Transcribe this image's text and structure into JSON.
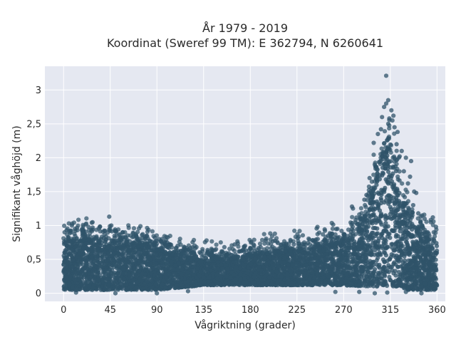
{
  "chart_data": {
    "type": "scatter",
    "title": "År 1979 - 2019",
    "subtitle": "Koordinat (Sweref 99 TM): E 362794, N 6260641",
    "xlabel": "Vågriktning (grader)",
    "ylabel": "Signifikant våghöjd (m)",
    "xlim": [
      -18,
      368
    ],
    "ylim": [
      -0.12,
      3.35
    ],
    "x_ticks": [
      0,
      45,
      90,
      135,
      180,
      225,
      270,
      315,
      360
    ],
    "x_tick_labels": [
      "0",
      "45",
      "90",
      "135",
      "180",
      "225",
      "270",
      "315",
      "360"
    ],
    "y_ticks": [
      0,
      0.5,
      1,
      1.5,
      2,
      2.5,
      3
    ],
    "y_tick_labels": [
      "0",
      "0,5",
      "1",
      "1,5",
      "2",
      "2,5",
      "3"
    ],
    "grid": true,
    "legend": "none",
    "point_color": "#2f5369",
    "plot_bg": "#e5e8f1",
    "envelope": {
      "x": [
        0,
        20,
        45,
        70,
        90,
        110,
        135,
        160,
        180,
        200,
        225,
        250,
        270,
        285,
        295,
        303,
        310,
        315,
        320,
        325,
        330,
        340,
        350,
        360
      ],
      "y_max": [
        0.75,
        0.78,
        0.75,
        0.7,
        0.65,
        0.55,
        0.5,
        0.52,
        0.55,
        0.6,
        0.62,
        0.68,
        0.75,
        0.9,
        1.3,
        1.8,
        2.1,
        2.1,
        1.85,
        1.5,
        1.2,
        0.9,
        0.8,
        0.75
      ],
      "y_min": [
        0.05,
        0.05,
        0.05,
        0.05,
        0.05,
        0.08,
        0.12,
        0.12,
        0.12,
        0.12,
        0.12,
        0.12,
        0.12,
        0.1,
        0.1,
        0.1,
        0.1,
        0.1,
        0.1,
        0.08,
        0.05,
        0.05,
        0.05,
        0.05
      ]
    },
    "outliers": [
      {
        "x": 311,
        "y": 3.21
      },
      {
        "x": 313,
        "y": 2.85
      },
      {
        "x": 311,
        "y": 2.8
      },
      {
        "x": 309,
        "y": 2.75
      },
      {
        "x": 316,
        "y": 2.7
      },
      {
        "x": 307,
        "y": 2.6
      },
      {
        "x": 317,
        "y": 2.55
      },
      {
        "x": 319,
        "y": 2.45
      },
      {
        "x": 313,
        "y": 2.5
      },
      {
        "x": 306,
        "y": 2.42
      },
      {
        "x": 314,
        "y": 2.58
      },
      {
        "x": 318,
        "y": 2.62
      },
      {
        "x": 322,
        "y": 2.38
      },
      {
        "x": 330,
        "y": 2.0
      },
      {
        "x": 335,
        "y": 1.95
      },
      {
        "x": 326,
        "y": 2.1
      },
      {
        "x": 328,
        "y": 1.8
      },
      {
        "x": 300,
        "y": 1.9
      },
      {
        "x": 297,
        "y": 1.55
      },
      {
        "x": 292,
        "y": 1.45
      },
      {
        "x": 290,
        "y": 1.38
      },
      {
        "x": 295,
        "y": 1.7
      },
      {
        "x": 334,
        "y": 1.72
      },
      {
        "x": 338,
        "y": 1.5
      },
      {
        "x": 337,
        "y": 1.3
      },
      {
        "x": 342,
        "y": 1.18
      },
      {
        "x": 344,
        "y": 1.05
      },
      {
        "x": 348,
        "y": 1.1
      },
      {
        "x": 354,
        "y": 1.05
      },
      {
        "x": 356,
        "y": 1.12
      },
      {
        "x": 340,
        "y": 1.48
      },
      {
        "x": 279,
        "y": 1.25
      },
      {
        "x": 278,
        "y": 1.28
      },
      {
        "x": 283,
        "y": 1.02
      },
      {
        "x": 264,
        "y": 0.95
      },
      {
        "x": 268,
        "y": 0.92
      },
      {
        "x": 245,
        "y": 0.8
      },
      {
        "x": 240,
        "y": 0.78
      },
      {
        "x": 232,
        "y": 0.75
      },
      {
        "x": 222,
        "y": 0.72
      },
      {
        "x": 210,
        "y": 0.72
      },
      {
        "x": 195,
        "y": 0.78
      },
      {
        "x": 175,
        "y": 0.7
      },
      {
        "x": 165,
        "y": 0.72
      },
      {
        "x": 155,
        "y": 0.68
      },
      {
        "x": 147,
        "y": 0.65
      },
      {
        "x": 110,
        "y": 0.7
      },
      {
        "x": 95,
        "y": 0.8
      },
      {
        "x": 88,
        "y": 0.82
      },
      {
        "x": 80,
        "y": 0.85
      },
      {
        "x": 70,
        "y": 0.85
      },
      {
        "x": 57,
        "y": 0.9
      },
      {
        "x": 44,
        "y": 1.13
      },
      {
        "x": 46,
        "y": 1.0
      },
      {
        "x": 40,
        "y": 0.92
      },
      {
        "x": 35,
        "y": 0.98
      },
      {
        "x": 28,
        "y": 0.97
      },
      {
        "x": 24,
        "y": 0.98
      },
      {
        "x": 18,
        "y": 0.95
      },
      {
        "x": 11,
        "y": 0.95
      },
      {
        "x": 8,
        "y": 1.0
      },
      {
        "x": 3,
        "y": 0.93
      },
      {
        "x": 1,
        "y": 0.9
      },
      {
        "x": 60,
        "y": 0.82
      },
      {
        "x": 100,
        "y": 0.75
      },
      {
        "x": 125,
        "y": 0.6
      },
      {
        "x": 190,
        "y": 0.68
      },
      {
        "x": 255,
        "y": 0.85
      },
      {
        "x": 287,
        "y": 1.1
      },
      {
        "x": 299,
        "y": 2.22
      },
      {
        "x": 303,
        "y": 2.35
      },
      {
        "x": 321,
        "y": 2.2
      },
      {
        "x": 324,
        "y": 2.02
      },
      {
        "x": 332,
        "y": 1.62
      },
      {
        "x": 346,
        "y": 0.98
      },
      {
        "x": 359,
        "y": 0.98
      },
      {
        "x": 351,
        "y": 0.9
      },
      {
        "x": 285,
        "y": 0.02
      },
      {
        "x": 300,
        "y": 0.0
      },
      {
        "x": 312,
        "y": 0.01
      },
      {
        "x": 330,
        "y": 0.02
      },
      {
        "x": 345,
        "y": 0.0
      },
      {
        "x": 12,
        "y": 0.01
      },
      {
        "x": 50,
        "y": 0.0
      },
      {
        "x": 90,
        "y": 0.0
      },
      {
        "x": 120,
        "y": 0.03
      },
      {
        "x": 262,
        "y": 0.02
      }
    ]
  }
}
